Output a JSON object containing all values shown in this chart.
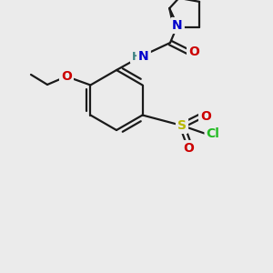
{
  "bg_color": "#ebebeb",
  "bond_color": "#1a1a1a",
  "bond_lw": 1.6,
  "atom_colors": {
    "N": "#0000cc",
    "O": "#cc0000",
    "S": "#b8b800",
    "Cl": "#22bb22",
    "H": "#3a8080",
    "C": "#1a1a1a"
  },
  "font_size": 10,
  "fig_size": [
    3.0,
    3.0
  ],
  "dpi": 100
}
